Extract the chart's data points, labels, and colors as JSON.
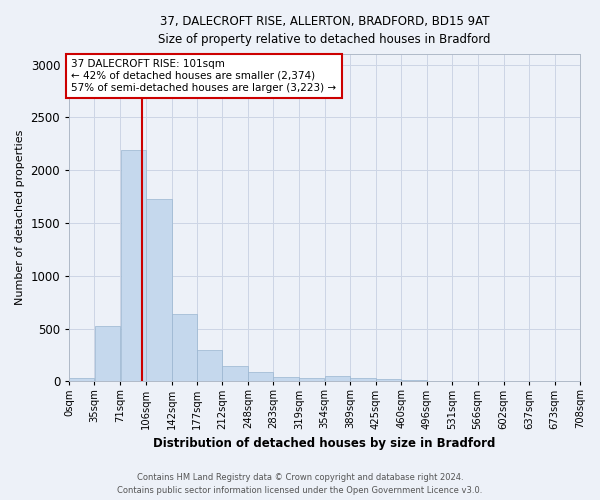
{
  "title_line1": "37, DALECROFT RISE, ALLERTON, BRADFORD, BD15 9AT",
  "title_line2": "Size of property relative to detached houses in Bradford",
  "xlabel": "Distribution of detached houses by size in Bradford",
  "ylabel": "Number of detached properties",
  "property_size": 101,
  "annotation_line1": "37 DALECROFT RISE: 101sqm",
  "annotation_line2": "← 42% of detached houses are smaller (2,374)",
  "annotation_line3": "57% of semi-detached houses are larger (3,223) →",
  "bin_edges": [
    0,
    35,
    71,
    106,
    142,
    177,
    212,
    248,
    283,
    319,
    354,
    389,
    425,
    460,
    496,
    531,
    566,
    602,
    637,
    673,
    708
  ],
  "bin_labels": [
    "0sqm",
    "35sqm",
    "71sqm",
    "106sqm",
    "142sqm",
    "177sqm",
    "212sqm",
    "248sqm",
    "283sqm",
    "319sqm",
    "354sqm",
    "389sqm",
    "425sqm",
    "460sqm",
    "496sqm",
    "531sqm",
    "566sqm",
    "602sqm",
    "637sqm",
    "673sqm",
    "708sqm"
  ],
  "counts": [
    30,
    520,
    2190,
    1730,
    640,
    300,
    150,
    85,
    45,
    30,
    55,
    30,
    20,
    15,
    0,
    0,
    0,
    0,
    0,
    0
  ],
  "bar_color": "#c5d8ed",
  "bar_edge_color": "#9ab5d0",
  "vline_x": 101,
  "vline_color": "#cc0000",
  "annotation_box_color": "#cc0000",
  "annotation_box_fill": "#ffffff",
  "grid_color": "#cdd5e5",
  "background_color": "#edf1f8",
  "ylim": [
    0,
    3100
  ],
  "yticks": [
    0,
    500,
    1000,
    1500,
    2000,
    2500,
    3000
  ],
  "footer_line1": "Contains HM Land Registry data © Crown copyright and database right 2024.",
  "footer_line2": "Contains public sector information licensed under the Open Government Licence v3.0."
}
